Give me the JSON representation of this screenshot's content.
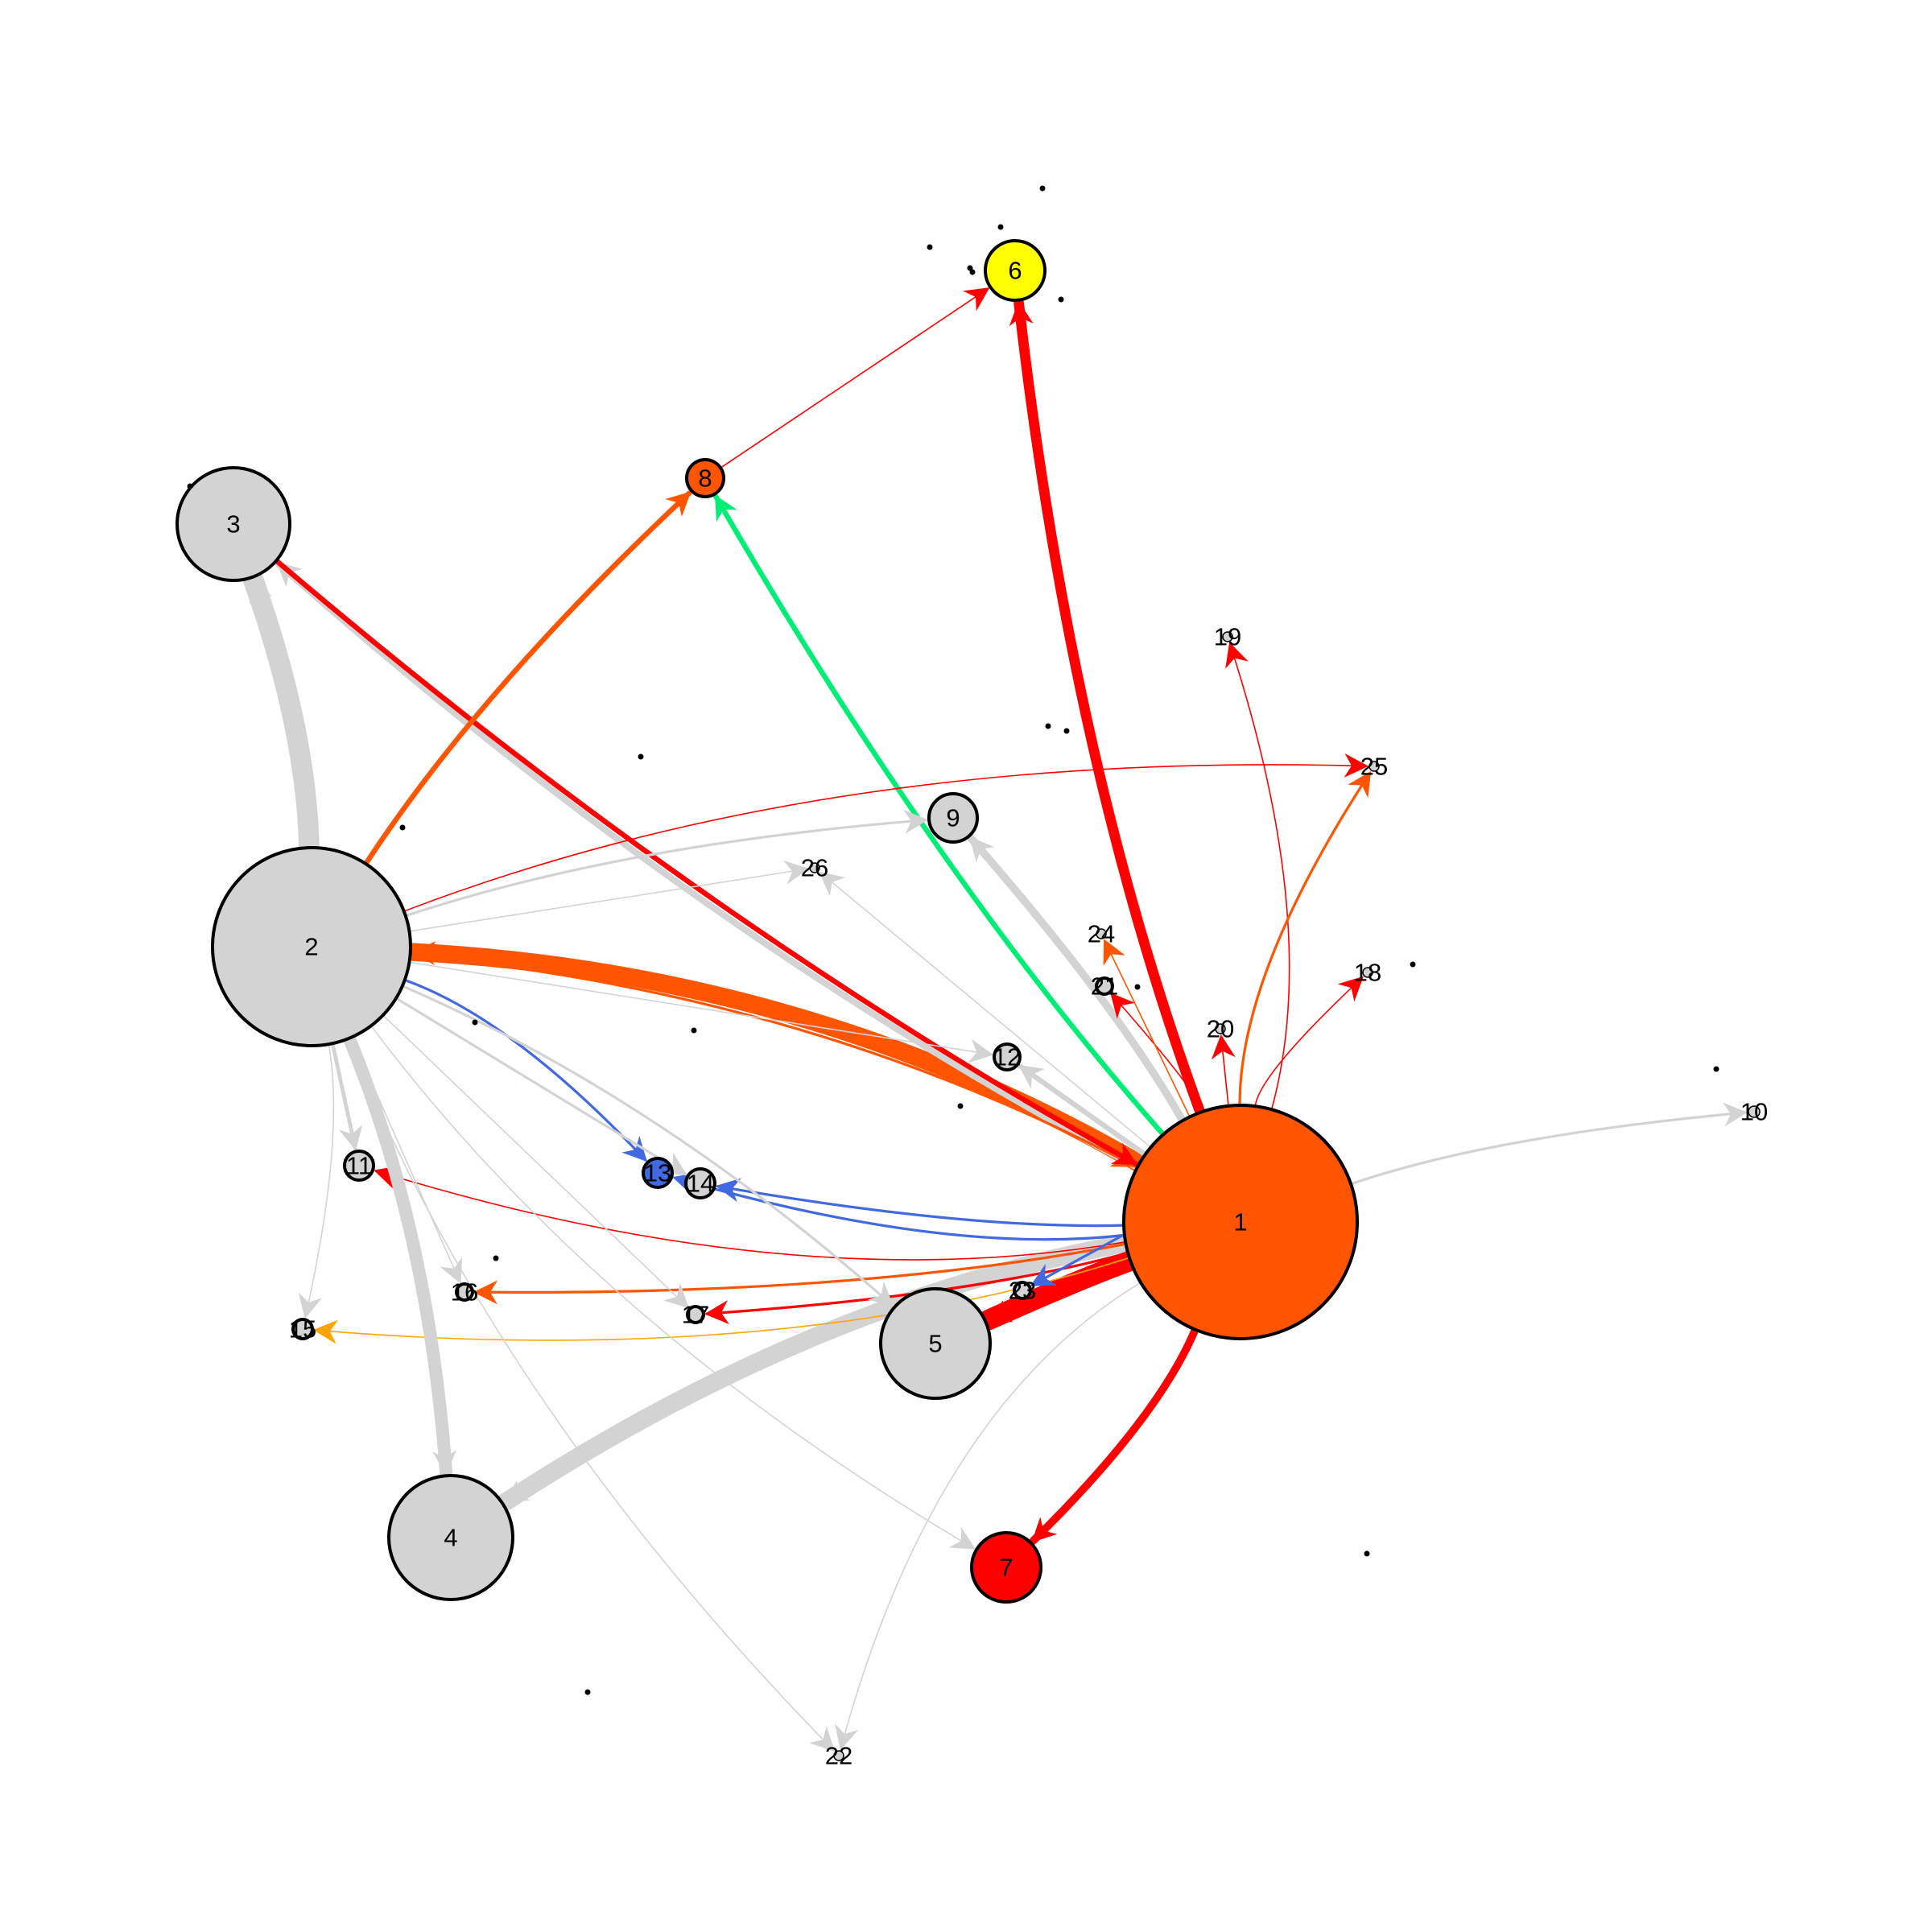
{
  "colors": {
    "background": "#ffffff",
    "gray": "#d3d3d3",
    "orange": "#ff5500",
    "red": "#ff0000",
    "green": "#00ee76",
    "blue": "#4169e1",
    "amber": "#ffa500",
    "yellow": "#ffff00",
    "outline": "#000000"
  },
  "nodes": [
    {
      "id": "1",
      "label": "1",
      "color": "#ff5500"
    },
    {
      "id": "2",
      "label": "2",
      "color": "#d3d3d3"
    },
    {
      "id": "3",
      "label": "3",
      "color": "#d3d3d3"
    },
    {
      "id": "4",
      "label": "4",
      "color": "#d3d3d3"
    },
    {
      "id": "5",
      "label": "5",
      "color": "#d3d3d3"
    },
    {
      "id": "6",
      "label": "6",
      "color": "#ffff00"
    },
    {
      "id": "7",
      "label": "7",
      "color": "#ff0000"
    },
    {
      "id": "8",
      "label": "8",
      "color": "#ff5500"
    },
    {
      "id": "9",
      "label": "9",
      "color": "#d3d3d3"
    },
    {
      "id": "10",
      "label": "10",
      "color": "#d3d3d3"
    },
    {
      "id": "11",
      "label": "11",
      "color": "#d3d3d3"
    },
    {
      "id": "12",
      "label": "12",
      "color": "#d3d3d3"
    },
    {
      "id": "13",
      "label": "13",
      "color": "#4169e1"
    },
    {
      "id": "14",
      "label": "14",
      "color": "#d3d3d3"
    },
    {
      "id": "15",
      "label": "15",
      "color": "#d3d3d3"
    },
    {
      "id": "16",
      "label": "16",
      "color": "#d3d3d3"
    },
    {
      "id": "17",
      "label": "17",
      "color": "#d3d3d3"
    },
    {
      "id": "18",
      "label": "18",
      "color": "#d3d3d3"
    },
    {
      "id": "19",
      "label": "19",
      "color": "#d3d3d3"
    },
    {
      "id": "20",
      "label": "20",
      "color": "#d3d3d3"
    },
    {
      "id": "21",
      "label": "21",
      "color": "#d3d3d3"
    },
    {
      "id": "22",
      "label": "22",
      "color": "#d3d3d3"
    },
    {
      "id": "23",
      "label": "23",
      "color": "#d3d3d3"
    },
    {
      "id": "24",
      "label": "24",
      "color": "#d3d3d3"
    },
    {
      "id": "25",
      "label": "25",
      "color": "#d3d3d3"
    },
    {
      "id": "26",
      "label": "26",
      "color": "#d3d3d3"
    }
  ],
  "edges": [
    {
      "from": "1",
      "to": "6",
      "color": "#ff0000",
      "weight": 8
    },
    {
      "from": "1",
      "to": "7",
      "color": "#ff0000",
      "weight": 6
    },
    {
      "from": "1",
      "to": "8",
      "color": "#00ee76",
      "weight": 4
    },
    {
      "from": "1",
      "to": "2",
      "color": "#ff5500",
      "weight": 14
    },
    {
      "from": "1",
      "to": "3",
      "color": "#d3d3d3",
      "weight": 5
    },
    {
      "from": "1",
      "to": "4",
      "color": "#d3d3d3",
      "weight": 14
    },
    {
      "from": "1",
      "to": "5",
      "color": "#ff0000",
      "weight": 16
    },
    {
      "from": "1",
      "to": "9",
      "color": "#d3d3d3",
      "weight": 6
    },
    {
      "from": "1",
      "to": "10",
      "color": "#d3d3d3",
      "weight": 2
    },
    {
      "from": "1",
      "to": "11",
      "color": "#ff0000",
      "weight": 1
    },
    {
      "from": "1",
      "to": "12",
      "color": "#d3d3d3",
      "weight": 4
    },
    {
      "from": "1",
      "to": "13",
      "color": "#4169e1",
      "weight": 2
    },
    {
      "from": "1",
      "to": "14",
      "color": "#4169e1",
      "weight": 2
    },
    {
      "from": "1",
      "to": "15",
      "color": "#ffa500",
      "weight": 1
    },
    {
      "from": "1",
      "to": "16",
      "color": "#ff5500",
      "weight": 2
    },
    {
      "from": "1",
      "to": "17",
      "color": "#ff0000",
      "weight": 2
    },
    {
      "from": "1",
      "to": "18",
      "color": "#ff0000",
      "weight": 1
    },
    {
      "from": "1",
      "to": "19",
      "color": "#ff0000",
      "weight": 1
    },
    {
      "from": "1",
      "to": "20",
      "color": "#ff0000",
      "weight": 1
    },
    {
      "from": "1",
      "to": "21",
      "color": "#ff0000",
      "weight": 1
    },
    {
      "from": "1",
      "to": "22",
      "color": "#d3d3d3",
      "weight": 1
    },
    {
      "from": "1",
      "to": "23",
      "color": "#4169e1",
      "weight": 2
    },
    {
      "from": "1",
      "to": "24",
      "color": "#ff5500",
      "weight": 1
    },
    {
      "from": "1",
      "to": "25",
      "color": "#ff5500",
      "weight": 2
    },
    {
      "from": "1",
      "to": "26",
      "color": "#d3d3d3",
      "weight": 1
    },
    {
      "from": "2",
      "to": "1",
      "color": "#ff5500",
      "weight": 2
    },
    {
      "from": "3",
      "to": "1",
      "color": "#ff0000",
      "weight": 4
    },
    {
      "from": "2",
      "to": "3",
      "color": "#d3d3d3",
      "weight": 16
    },
    {
      "from": "2",
      "to": "4",
      "color": "#d3d3d3",
      "weight": 10
    },
    {
      "from": "2",
      "to": "8",
      "color": "#ff5500",
      "weight": 4
    },
    {
      "from": "8",
      "to": "6",
      "color": "#ff0000",
      "weight": 1
    },
    {
      "from": "2",
      "to": "13",
      "color": "#4169e1",
      "weight": 2
    },
    {
      "from": "2",
      "to": "14",
      "color": "#d3d3d3",
      "weight": 2
    },
    {
      "from": "2",
      "to": "9",
      "color": "#d3d3d3",
      "weight": 2
    },
    {
      "from": "2",
      "to": "25",
      "color": "#ff0000",
      "weight": 1
    },
    {
      "from": "2",
      "to": "5",
      "color": "#d3d3d3",
      "weight": 2
    },
    {
      "from": "2",
      "to": "11",
      "color": "#d3d3d3",
      "weight": 3
    },
    {
      "from": "2",
      "to": "15",
      "color": "#d3d3d3",
      "weight": 1
    },
    {
      "from": "2",
      "to": "16",
      "color": "#d3d3d3",
      "weight": 1
    },
    {
      "from": "2",
      "to": "17",
      "color": "#d3d3d3",
      "weight": 1
    },
    {
      "from": "2",
      "to": "7",
      "color": "#d3d3d3",
      "weight": 1
    },
    {
      "from": "2",
      "to": "22",
      "color": "#d3d3d3",
      "weight": 1
    },
    {
      "from": "2",
      "to": "26",
      "color": "#d3d3d3",
      "weight": 1
    },
    {
      "from": "2",
      "to": "12",
      "color": "#d3d3d3",
      "weight": 1
    }
  ]
}
